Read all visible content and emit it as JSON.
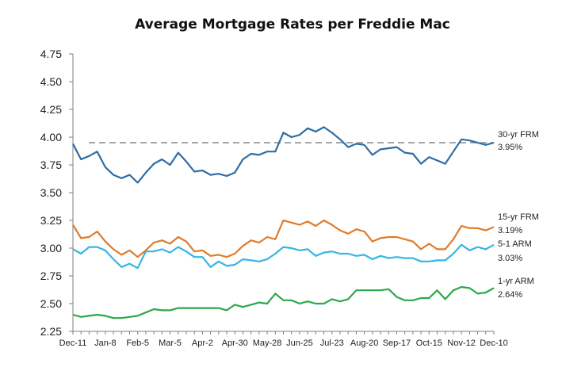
{
  "chart_data": {
    "type": "line",
    "title": "Average Mortgage Rates per Freddie Mac",
    "xlabel": "",
    "ylabel": "",
    "ylim": [
      2.25,
      4.75
    ],
    "yticks": [
      "4.75",
      "4.50",
      "4.25",
      "4.00",
      "3.75",
      "3.50",
      "3.25",
      "3.00",
      "2.75",
      "2.50",
      "2.25"
    ],
    "xtick_labels": [
      "Dec-11",
      "Jan-8",
      "Feb-5",
      "Mar-5",
      "Apr-2",
      "Apr-30",
      "May-28",
      "Jun-25",
      "Jul-23",
      "Aug-20",
      "Sep-17",
      "Oct-15",
      "Nov-12",
      "Dec-10"
    ],
    "grid": false,
    "legend": "end-labels",
    "reference_line": {
      "value": 3.95,
      "style": "dashed",
      "color": "#a6a6a6"
    },
    "series": [
      {
        "name": "30-yr FRM",
        "end_label": "3.95%",
        "color": "#2e6da4",
        "values": [
          3.94,
          3.8,
          3.83,
          3.87,
          3.73,
          3.66,
          3.63,
          3.66,
          3.59,
          3.68,
          3.76,
          3.8,
          3.75,
          3.86,
          3.78,
          3.69,
          3.7,
          3.66,
          3.67,
          3.65,
          3.68,
          3.8,
          3.85,
          3.84,
          3.87,
          3.87,
          4.04,
          4.0,
          4.02,
          4.08,
          4.05,
          4.09,
          4.04,
          3.98,
          3.91,
          3.94,
          3.93,
          3.84,
          3.89,
          3.9,
          3.91,
          3.86,
          3.85,
          3.76,
          3.82,
          3.79,
          3.76,
          3.87,
          3.98,
          3.97,
          3.95,
          3.93,
          3.95
        ]
      },
      {
        "name": "15-yr FRM",
        "end_label": "3.19%",
        "color": "#e07b28",
        "values": [
          3.21,
          3.09,
          3.1,
          3.15,
          3.06,
          2.99,
          2.94,
          2.98,
          2.92,
          2.98,
          3.05,
          3.07,
          3.04,
          3.1,
          3.06,
          2.97,
          2.98,
          2.93,
          2.94,
          2.92,
          2.95,
          3.02,
          3.07,
          3.05,
          3.1,
          3.08,
          3.25,
          3.23,
          3.21,
          3.24,
          3.2,
          3.25,
          3.21,
          3.16,
          3.13,
          3.17,
          3.15,
          3.06,
          3.09,
          3.1,
          3.1,
          3.08,
          3.06,
          2.99,
          3.04,
          2.99,
          2.99,
          3.08,
          3.2,
          3.18,
          3.18,
          3.16,
          3.19
        ]
      },
      {
        "name": "5-1 ARM",
        "end_label": "3.03%",
        "color": "#35b6e3",
        "values": [
          2.99,
          2.95,
          3.01,
          3.01,
          2.98,
          2.9,
          2.83,
          2.86,
          2.82,
          2.97,
          2.97,
          2.99,
          2.96,
          3.01,
          2.97,
          2.92,
          2.92,
          2.83,
          2.88,
          2.84,
          2.85,
          2.9,
          2.89,
          2.88,
          2.9,
          2.95,
          3.01,
          3.0,
          2.98,
          2.99,
          2.93,
          2.96,
          2.97,
          2.95,
          2.95,
          2.93,
          2.94,
          2.9,
          2.93,
          2.91,
          2.92,
          2.91,
          2.91,
          2.88,
          2.88,
          2.89,
          2.89,
          2.95,
          3.03,
          2.98,
          3.01,
          2.99,
          3.03
        ]
      },
      {
        "name": "1-yr ARM",
        "end_label": "2.64%",
        "color": "#2ca84a",
        "values": [
          2.4,
          2.38,
          2.39,
          2.4,
          2.39,
          2.37,
          2.37,
          2.38,
          2.39,
          2.42,
          2.45,
          2.44,
          2.44,
          2.46,
          2.46,
          2.46,
          2.46,
          2.46,
          2.46,
          2.44,
          2.49,
          2.47,
          2.49,
          2.51,
          2.5,
          2.59,
          2.53,
          2.53,
          2.5,
          2.52,
          2.5,
          2.5,
          2.54,
          2.52,
          2.54,
          2.62,
          2.62,
          2.62,
          2.62,
          2.63,
          2.56,
          2.53,
          2.53,
          2.55,
          2.55,
          2.62,
          2.54,
          2.62,
          2.65,
          2.64,
          2.59,
          2.6,
          2.64
        ]
      }
    ]
  }
}
